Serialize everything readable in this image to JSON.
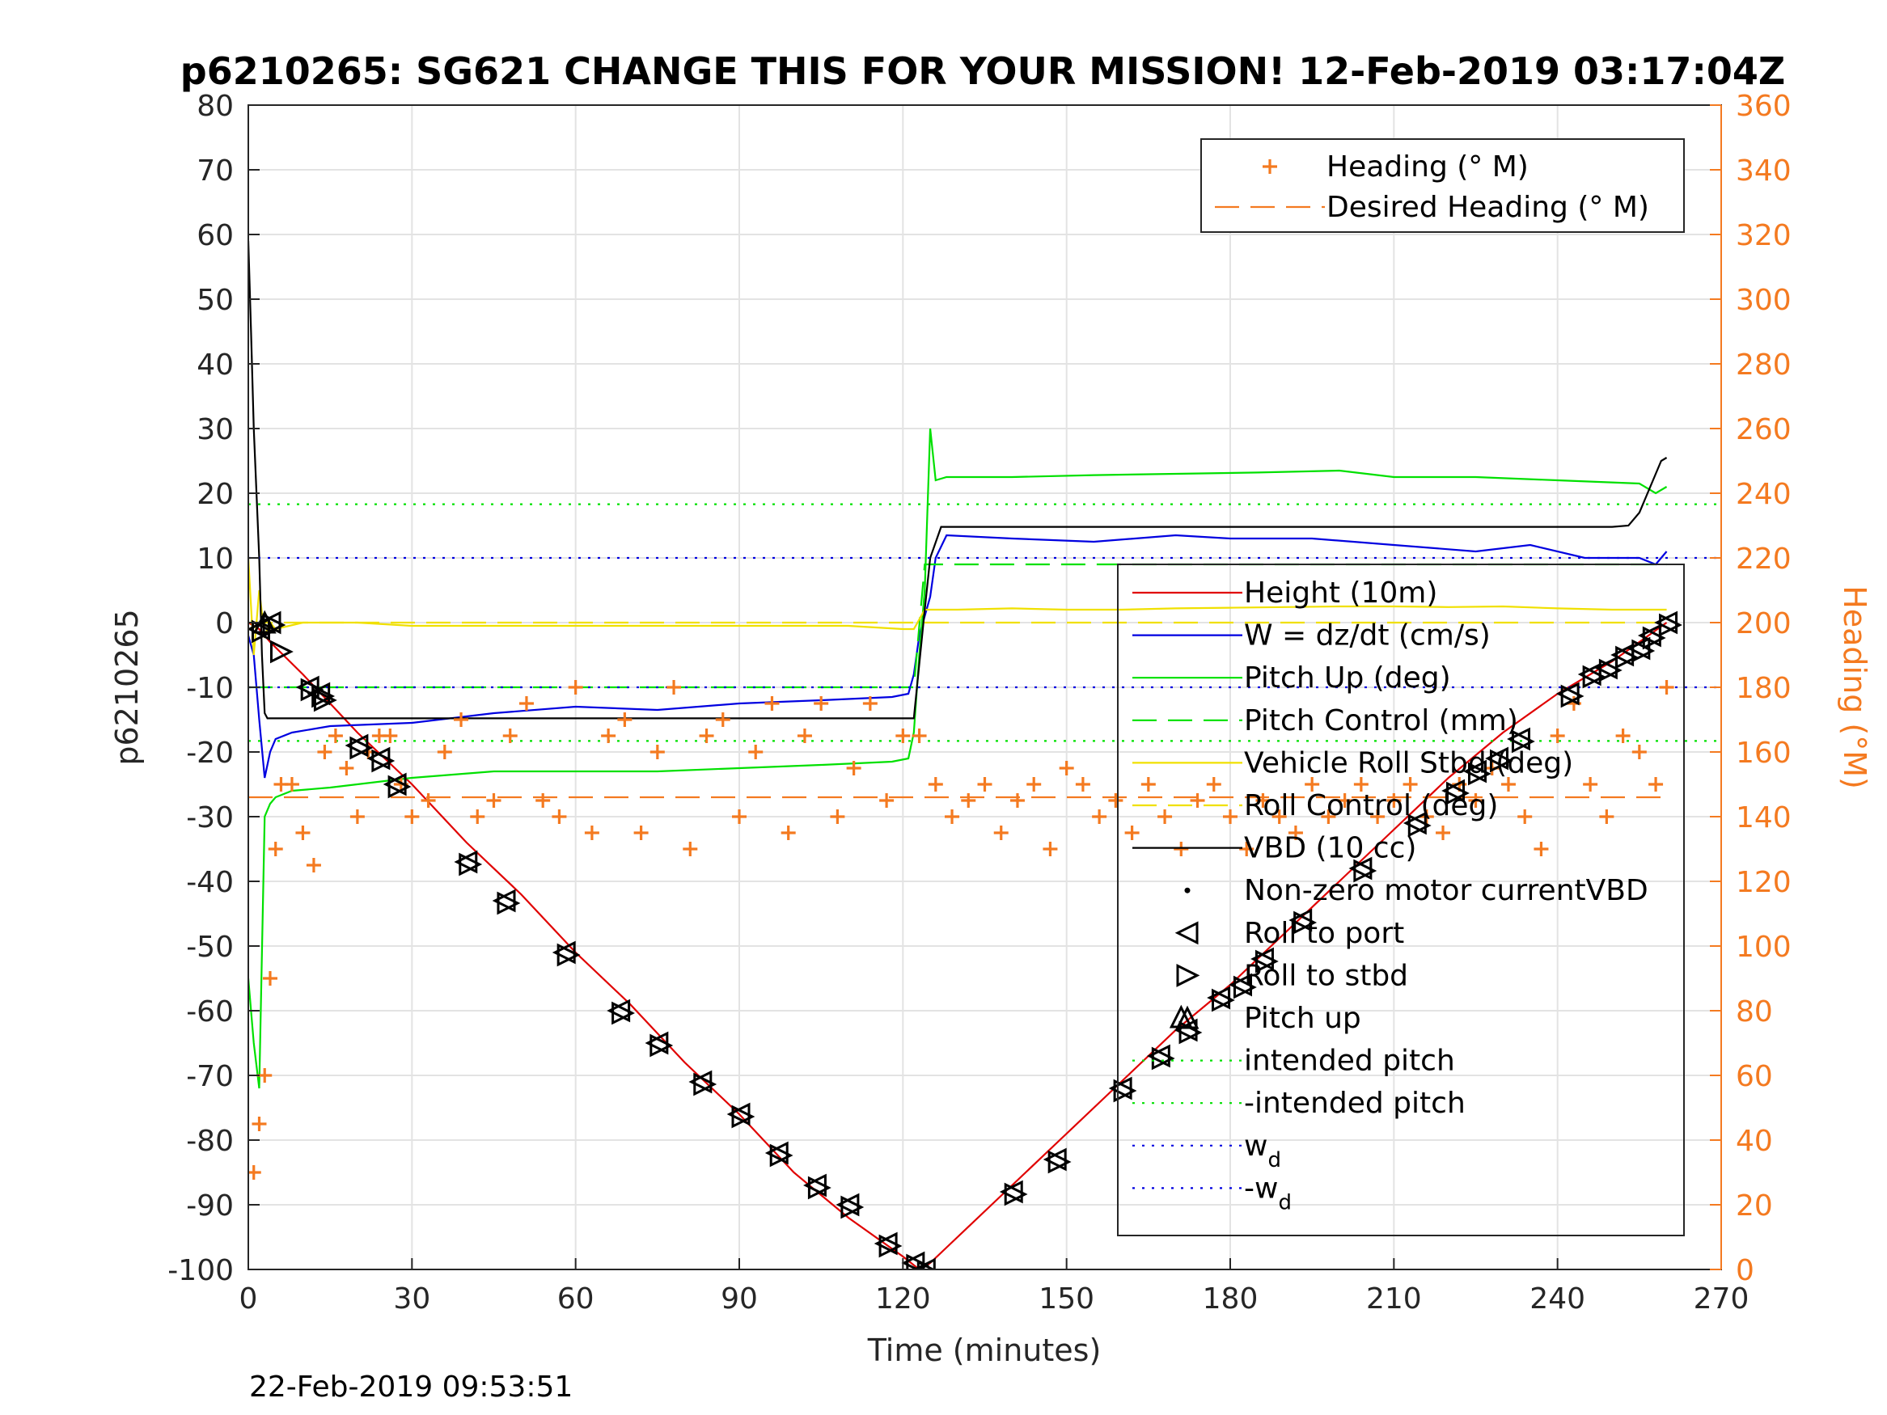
{
  "chart_data": {
    "type": "line",
    "title": "p6210265: SG621 CHANGE THIS FOR YOUR MISSION! 12-Feb-2019 03:17:04Z",
    "xlabel": "Time (minutes)",
    "ylabel": "p6210265",
    "ylabel_right": "Heading (°M)",
    "xlim": [
      0,
      270
    ],
    "ylim": [
      -100,
      80
    ],
    "ylim_right": [
      0,
      360
    ],
    "x_ticks": [
      "0",
      "30",
      "60",
      "90",
      "120",
      "150",
      "180",
      "210",
      "240",
      "270"
    ],
    "y_ticks": [
      "80",
      "70",
      "60",
      "50",
      "40",
      "30",
      "20",
      "10",
      "0",
      "-10",
      "-20",
      "-30",
      "-40",
      "-50",
      "-60",
      "-70",
      "-80",
      "-90",
      "-100"
    ],
    "y_ticks_right": [
      "360",
      "340",
      "320",
      "300",
      "280",
      "260",
      "240",
      "220",
      "200",
      "180",
      "160",
      "140",
      "120",
      "100",
      "80",
      "60",
      "40",
      "20",
      "0"
    ],
    "grid": true,
    "footer_date": "22-Feb-2019 09:53:51",
    "legend_right_axis": [
      {
        "label": "Heading (° M)",
        "color": "#f47a20",
        "style": "plus"
      },
      {
        "label": "Desired Heading (° M)",
        "color": "#f47a20",
        "style": "dashed"
      }
    ],
    "legend_left_axis": [
      {
        "label": "Height (10m)",
        "color": "#e00000",
        "style": "solid"
      },
      {
        "label": "W = dz/dt (cm/s)",
        "color": "#0000e0",
        "style": "solid"
      },
      {
        "label": "Pitch Up (deg)",
        "color": "#00e000",
        "style": "solid"
      },
      {
        "label": "Pitch Control (mm)",
        "color": "#00e000",
        "style": "dashed"
      },
      {
        "label": "Vehicle Roll Stbd (deg)",
        "color": "#f0e000",
        "style": "solid"
      },
      {
        "label": "Roll Control (deg)",
        "color": "#f0e000",
        "style": "dashed"
      },
      {
        "label": "VBD (10 cc)",
        "color": "#000000",
        "style": "solid"
      },
      {
        "label": "Non-zero motor currentVBD",
        "color": "#000000",
        "style": "dot"
      },
      {
        "label": "Roll to port",
        "color": "#000000",
        "style": "tri-left"
      },
      {
        "label": "Roll to stbd",
        "color": "#000000",
        "style": "tri-right"
      },
      {
        "label": "Pitch up",
        "color": "#000000",
        "style": "tri-up"
      },
      {
        "label": "intended pitch",
        "color": "#00e000",
        "style": "dotted"
      },
      {
        "label": "-intended pitch",
        "color": "#00e000",
        "style": "dotted"
      },
      {
        "label": "w",
        "sub": "d",
        "color": "#0000e0",
        "style": "dotted"
      },
      {
        "label": "-w",
        "sub": "d",
        "color": "#0000e0",
        "style": "dotted"
      }
    ],
    "series": [
      {
        "name": "Height (10m)",
        "color": "#e00000",
        "x": [
          0,
          2,
          4,
          10,
          20,
          30,
          40,
          50,
          60,
          70,
          80,
          90,
          100,
          110,
          120,
          123,
          125,
          130,
          140,
          150,
          160,
          170,
          180,
          190,
          200,
          210,
          220,
          230,
          240,
          250,
          260
        ],
        "y": [
          0,
          -1,
          -3,
          -8,
          -17,
          -25,
          -34,
          -42,
          -51,
          -59,
          -68,
          -76,
          -85,
          -92,
          -98,
          -100,
          -99,
          -95,
          -87,
          -79,
          -71,
          -63,
          -56,
          -48,
          -40,
          -32,
          -24,
          -17,
          -11,
          -6,
          0
        ]
      },
      {
        "name": "W = dz/dt (cm/s)",
        "color": "#0000e0",
        "x": [
          0,
          1,
          2,
          3,
          4,
          5,
          8,
          15,
          30,
          45,
          60,
          75,
          90,
          105,
          118,
          121,
          122,
          123,
          125,
          126,
          128,
          140,
          155,
          170,
          180,
          195,
          210,
          225,
          235,
          245,
          255,
          258,
          260
        ],
        "y": [
          -2,
          -5,
          -15,
          -24,
          -20,
          -18,
          -17,
          -16,
          -15.5,
          -14,
          -13,
          -13.5,
          -12.5,
          -12,
          -11.5,
          -11,
          -8,
          -2,
          4,
          10,
          13.5,
          13,
          12.5,
          13.5,
          13,
          13,
          12,
          11,
          12,
          10,
          10,
          9,
          11
        ]
      },
      {
        "name": "Pitch Up (deg)",
        "color": "#00e000",
        "x": [
          0,
          1,
          2,
          3,
          4,
          5,
          8,
          15,
          30,
          45,
          60,
          75,
          90,
          105,
          118,
          121,
          122,
          123,
          124,
          125,
          126,
          128,
          140,
          155,
          170,
          185,
          200,
          210,
          225,
          240,
          255,
          258,
          260
        ],
        "y": [
          -55,
          -65,
          -72,
          -30,
          -28,
          -27,
          -26,
          -25.5,
          -24,
          -23,
          -23,
          -23,
          -22.5,
          -22,
          -21.5,
          -21,
          -17,
          -5,
          5,
          30,
          22,
          22.5,
          22.5,
          22.8,
          23,
          23.2,
          23.5,
          22.5,
          22.5,
          22,
          21.5,
          20,
          21
        ]
      },
      {
        "name": "Pitch Control (mm)",
        "color": "#00e000",
        "dashed": true,
        "x": [
          0,
          122,
          124,
          260
        ],
        "y": [
          -10,
          -10,
          9,
          9
        ]
      },
      {
        "name": "Vehicle Roll Stbd (deg)",
        "color": "#f0e000",
        "x": [
          0,
          1,
          2,
          3,
          4,
          5,
          10,
          20,
          30,
          40,
          50,
          60,
          70,
          80,
          90,
          100,
          110,
          120,
          122,
          124,
          130,
          140,
          150,
          160,
          170,
          180,
          190,
          200,
          210,
          220,
          230,
          240,
          250,
          260
        ],
        "y": [
          10,
          -5,
          5,
          -2,
          0,
          -1,
          0,
          0,
          -0.5,
          -0.5,
          -0.5,
          -0.5,
          -0.5,
          -0.5,
          -0.5,
          -0.5,
          -0.5,
          -1,
          -1,
          2,
          2,
          2.2,
          2,
          2,
          2.2,
          2.3,
          2.4,
          2.5,
          2.5,
          2.4,
          2.5,
          2.2,
          2,
          2
        ]
      },
      {
        "name": "Roll Control (deg)",
        "color": "#f0e000",
        "dashed": true,
        "x": [
          0,
          260
        ],
        "y": [
          0,
          0
        ]
      },
      {
        "name": "VBD (10 cc)",
        "color": "#000000",
        "x": [
          0,
          0.5,
          1,
          2,
          2.5,
          3,
          3.5,
          122,
          124,
          125,
          127,
          250,
          253,
          255,
          256,
          257,
          258,
          259,
          260
        ],
        "y": [
          59,
          45,
          30,
          10,
          -5,
          -14,
          -14.8,
          -14.8,
          2,
          10,
          14.8,
          14.8,
          15,
          17,
          19,
          21,
          23,
          25,
          25.5
        ]
      },
      {
        "name": "intended pitch",
        "color": "#00e000",
        "dotted": true,
        "x": [
          0,
          270
        ],
        "y": [
          18.3,
          18.3
        ]
      },
      {
        "name": "-intended pitch",
        "color": "#00e000",
        "dotted": true,
        "x": [
          0,
          270
        ],
        "y": [
          -18.3,
          -18.3
        ]
      },
      {
        "name": "w_d",
        "color": "#0000e0",
        "dotted": true,
        "x": [
          0,
          270
        ],
        "y": [
          10,
          10
        ]
      },
      {
        "name": "-w_d",
        "color": "#0000e0",
        "dotted": true,
        "x": [
          0,
          270
        ],
        "y": [
          -10,
          -10
        ]
      },
      {
        "name": "Desired Heading (° M)",
        "color": "#f47a20",
        "dashed": true,
        "axis": "right",
        "x": [
          0,
          260
        ],
        "y": [
          146,
          146
        ]
      }
    ],
    "heading_points": {
      "axis": "right",
      "x": [
        1,
        2,
        3,
        4,
        5,
        6,
        8,
        10,
        12,
        14,
        16,
        18,
        20,
        22,
        24,
        26,
        28,
        30,
        33,
        36,
        39,
        42,
        45,
        48,
        51,
        54,
        57,
        60,
        63,
        66,
        69,
        72,
        75,
        78,
        81,
        84,
        87,
        90,
        93,
        96,
        99,
        102,
        105,
        108,
        111,
        114,
        117,
        120,
        123,
        126,
        129,
        132,
        135,
        138,
        141,
        144,
        147,
        150,
        153,
        156,
        159,
        162,
        165,
        168,
        171,
        174,
        177,
        180,
        183,
        186,
        189,
        192,
        195,
        198,
        201,
        204,
        207,
        210,
        213,
        216,
        219,
        222,
        225,
        228,
        231,
        234,
        237,
        240,
        243,
        246,
        249,
        252,
        255,
        258,
        260
      ],
      "y": [
        30,
        45,
        60,
        90,
        130,
        150,
        150,
        135,
        125,
        160,
        165,
        155,
        140,
        160,
        165,
        165,
        150,
        140,
        145,
        160,
        170,
        140,
        145,
        165,
        175,
        145,
        140,
        180,
        135,
        165,
        170,
        135,
        160,
        180,
        130,
        165,
        170,
        140,
        160,
        175,
        135,
        165,
        175,
        140,
        155,
        175,
        145,
        165,
        165,
        150,
        140,
        145,
        150,
        135,
        145,
        150,
        130,
        155,
        150,
        140,
        145,
        135,
        150,
        140,
        130,
        145,
        150,
        140,
        130,
        145,
        140,
        135,
        150,
        140,
        145,
        150,
        140,
        145,
        150,
        140,
        135,
        150,
        145,
        155,
        150,
        140,
        130,
        165,
        175,
        150,
        140,
        165,
        160,
        150,
        180
      ]
    },
    "roll_port_points": {
      "x": [
        2,
        4,
        11,
        13,
        20,
        24,
        27,
        40,
        47,
        58,
        68,
        75,
        83,
        90,
        97,
        104,
        110,
        117,
        122,
        124,
        140,
        148,
        160,
        167,
        172,
        178,
        182,
        186,
        193,
        204,
        214,
        221,
        225,
        229,
        233,
        242,
        246,
        249,
        252,
        255,
        257,
        260
      ],
      "y": [
        -1,
        0,
        -10,
        -11,
        -19,
        -21,
        -25,
        -37,
        -43,
        -51,
        -60,
        -65,
        -71,
        -76,
        -82,
        -87,
        -90,
        -96,
        -99,
        -100,
        -88,
        -83,
        -72,
        -67,
        -63,
        -58,
        -56,
        -52,
        -46,
        -38,
        -31,
        -26,
        -23,
        -21,
        -18,
        -11,
        -8,
        -7,
        -5,
        -4,
        -2,
        0
      ]
    },
    "roll_stbd_points": {
      "x": [
        6,
        14
      ],
      "y": [
        -4.5,
        -12
      ]
    },
    "pitch_up_points": {
      "x": [
        3,
        171
      ],
      "y": [
        0,
        -61
      ]
    }
  }
}
